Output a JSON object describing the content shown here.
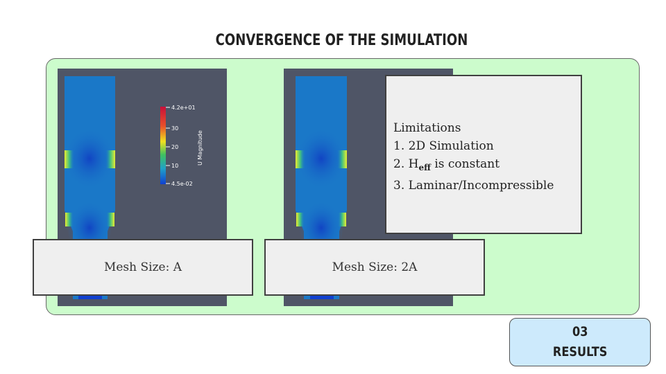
{
  "slide": {
    "title": "CONVERGENCE OF THE SIMULATION"
  },
  "colorbar": {
    "max_label": "4.2e+01",
    "ticks": [
      "30",
      "20",
      "10"
    ],
    "min_label": "4.5e-02",
    "title": "U Magnitude"
  },
  "captions": {
    "left": "Mesh Size: A",
    "right": "Mesh Size: 2A"
  },
  "limitations": {
    "heading": "Limitations",
    "item1": "1. 2D Simulation",
    "item2_prefix": "2. H",
    "item2_sub": "eff",
    "item2_suffix": " is constant",
    "item3": "3. Laminar/Incompressible"
  },
  "section_badge": {
    "number": "03",
    "label": "RESULTS"
  },
  "colors": {
    "panel_bg": "#ccfccc",
    "sim_bg": "#4f5566",
    "flow_base": "#1a78c8",
    "badge_bg": "#cdeafc"
  }
}
